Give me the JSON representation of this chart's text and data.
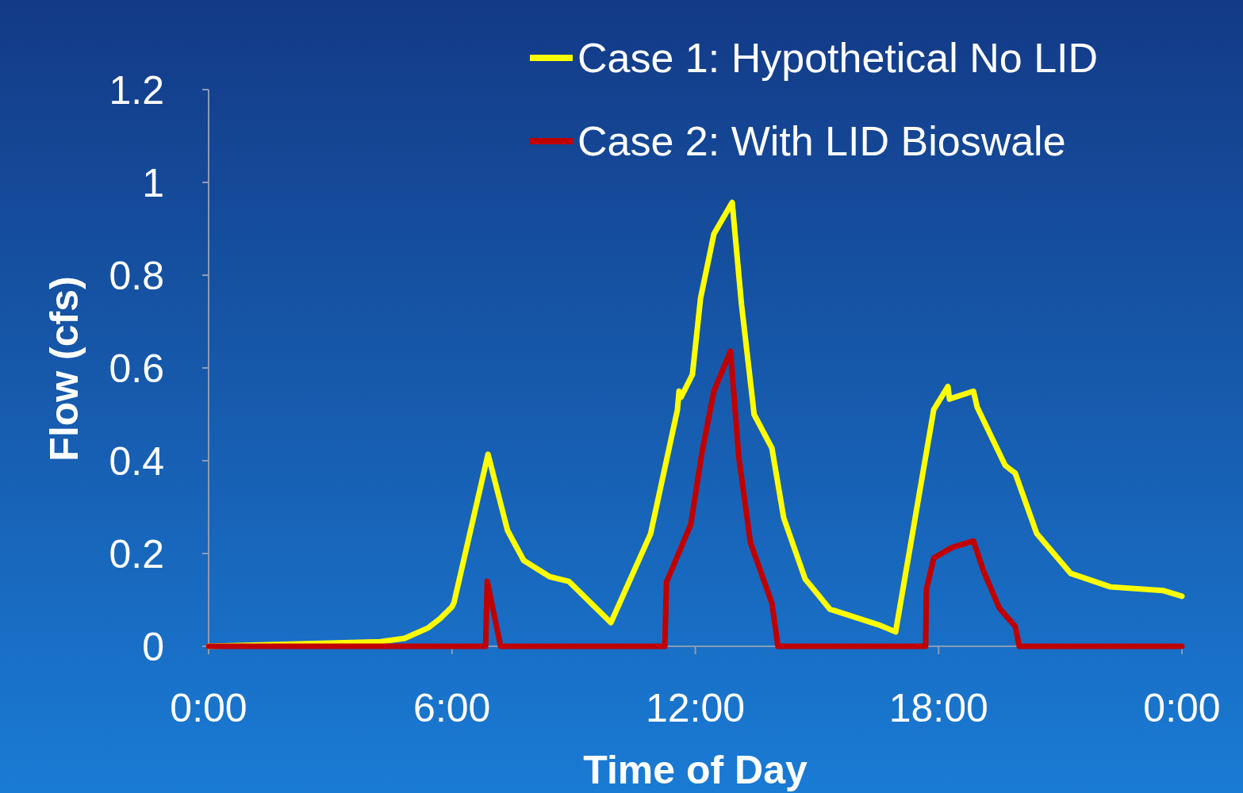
{
  "chart_data": {
    "type": "line",
    "xlabel": "Time of Day",
    "ylabel": "Flow (cfs)",
    "xlim": [
      0,
      24
    ],
    "xticks": [
      {
        "value": 0,
        "label": "0:00"
      },
      {
        "value": 6,
        "label": "6:00"
      },
      {
        "value": 12,
        "label": "12:00"
      },
      {
        "value": 18,
        "label": "18:00"
      },
      {
        "value": 24,
        "label": "0:00"
      }
    ],
    "ylim": [
      0,
      1.2
    ],
    "yticks": [
      0,
      0.2,
      0.4,
      0.6,
      0.8,
      1,
      1.2
    ],
    "grid": false,
    "legend": "top right",
    "marker": "none",
    "line_style": "solid",
    "series": [
      {
        "name": "Case 1: Hypothetical No LID",
        "color": "#ffff00",
        "x": [
          0,
          4.24,
          4.83,
          5.42,
          5.71,
          6.0,
          6.05,
          6.89,
          7.37,
          7.77,
          8.41,
          8.88,
          9.92,
          10.9,
          11.56,
          11.6,
          11.65,
          11.93,
          12.13,
          12.46,
          12.91,
          13.14,
          13.4,
          13.45,
          13.89,
          14.18,
          14.71,
          15.32,
          16.53,
          16.94,
          17.88,
          18.23,
          18.27,
          18.86,
          18.95,
          19.64,
          19.89,
          20.42,
          21.26,
          22.24,
          23.55,
          24
        ],
        "values": [
          0,
          0.01,
          0.017,
          0.04,
          0.06,
          0.085,
          0.094,
          0.414,
          0.25,
          0.185,
          0.15,
          0.14,
          0.051,
          0.243,
          0.51,
          0.55,
          0.537,
          0.586,
          0.75,
          0.889,
          0.957,
          0.737,
          0.54,
          0.5,
          0.427,
          0.277,
          0.145,
          0.08,
          0.046,
          0.031,
          0.51,
          0.56,
          0.533,
          0.55,
          0.516,
          0.39,
          0.373,
          0.243,
          0.157,
          0.128,
          0.12,
          0.108
        ]
      },
      {
        "name": "Case 2: With LID Bioswale",
        "color": "#c00000",
        "x": [
          0,
          6.83,
          6.87,
          7.2,
          11.25,
          11.29,
          11.89,
          12.17,
          12.46,
          12.87,
          13.07,
          13.36,
          13.89,
          14.04,
          17.68,
          17.7,
          17.88,
          18.33,
          18.86,
          19.11,
          19.5,
          19.89,
          19.99,
          24
        ],
        "values": [
          0,
          0,
          0.14,
          0,
          0,
          0.138,
          0.263,
          0.42,
          0.55,
          0.636,
          0.41,
          0.224,
          0.093,
          0,
          0,
          0.123,
          0.19,
          0.213,
          0.227,
          0.162,
          0.082,
          0.043,
          0,
          0
        ]
      }
    ]
  }
}
